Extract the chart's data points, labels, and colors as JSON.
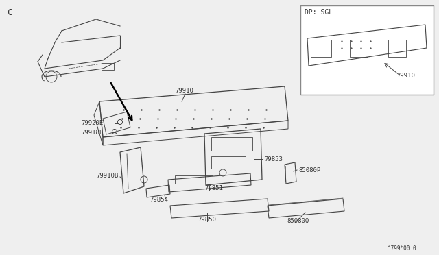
{
  "bg_color": "#f0f0f0",
  "corner_label": "C",
  "footer_text": "^799*00 0",
  "inset_label": "DP: SGL",
  "line_color": "#444444",
  "text_color": "#333333",
  "font_size": 6.5
}
